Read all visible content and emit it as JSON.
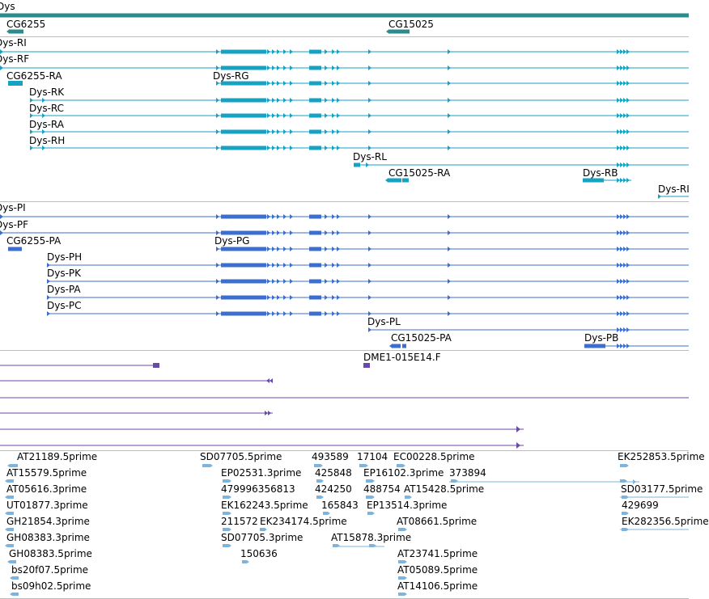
{
  "colors": {
    "gene": "#2e8b8b",
    "rna": "#16a2c2",
    "protein": "#3c6ed0",
    "clone": "#6a4aa8",
    "est": "#7eb4dc",
    "separator": "#bdbdbd"
  },
  "gene_track": {
    "gene_name": "Dys",
    "subgenes": [
      {
        "label": "CG6255"
      },
      {
        "label": "CG15025"
      }
    ]
  },
  "transcript_track": {
    "transcripts": [
      {
        "label": "Dys-RI"
      },
      {
        "label": "Dys-RF"
      },
      {
        "label": "CG6255-RA"
      },
      {
        "label": "Dys-RG"
      },
      {
        "label": "Dys-RK"
      },
      {
        "label": "Dys-RC"
      },
      {
        "label": "Dys-RA"
      },
      {
        "label": "Dys-RH"
      },
      {
        "label": "Dys-RL"
      },
      {
        "label": "CG15025-RA"
      },
      {
        "label": "Dys-RB"
      },
      {
        "label": "Dys-RI"
      }
    ]
  },
  "protein_track": {
    "proteins": [
      {
        "label": "Dys-PI"
      },
      {
        "label": "Dys-PF"
      },
      {
        "label": "CG6255-PA"
      },
      {
        "label": "Dys-PG"
      },
      {
        "label": "Dys-PH"
      },
      {
        "label": "Dys-PK"
      },
      {
        "label": "Dys-PA"
      },
      {
        "label": "Dys-PC"
      },
      {
        "label": "Dys-PL"
      },
      {
        "label": "CG15025-PA"
      },
      {
        "label": "Dys-PB"
      }
    ]
  },
  "clone_track": {
    "clones": [
      {
        "label": "DME1-015E14.F"
      }
    ]
  },
  "est_track": {
    "ests": [
      "AT21189.5prime",
      "SD07705.5prime",
      "493589",
      "17104",
      "EC00228.5prime",
      "EK252853.5prime",
      "AT15579.5prime",
      "EP02531.3prime",
      "425848",
      "EP16102.3prime",
      "373894",
      "AT05616.3prime",
      "479996356813",
      "424250",
      "488754",
      "AT15428.5prime",
      "SD03177.5prime",
      "UT01877.3prime",
      "EK162243.5prime",
      "165843",
      "EP13514.3prime",
      "429699",
      "GH21854.3prime",
      "211572",
      "EK234174.5prime",
      "AT08661.5prime",
      "EK282356.5prime",
      "GH08383.3prime",
      "SD07705.3prime",
      "AT15878.3prime",
      "GH08383.5prime",
      "150636",
      "AT23741.5prime",
      "bs20f07.5prime",
      "AT05089.5prime",
      "bs09h02.5prime",
      "AT14106.5prime"
    ]
  }
}
